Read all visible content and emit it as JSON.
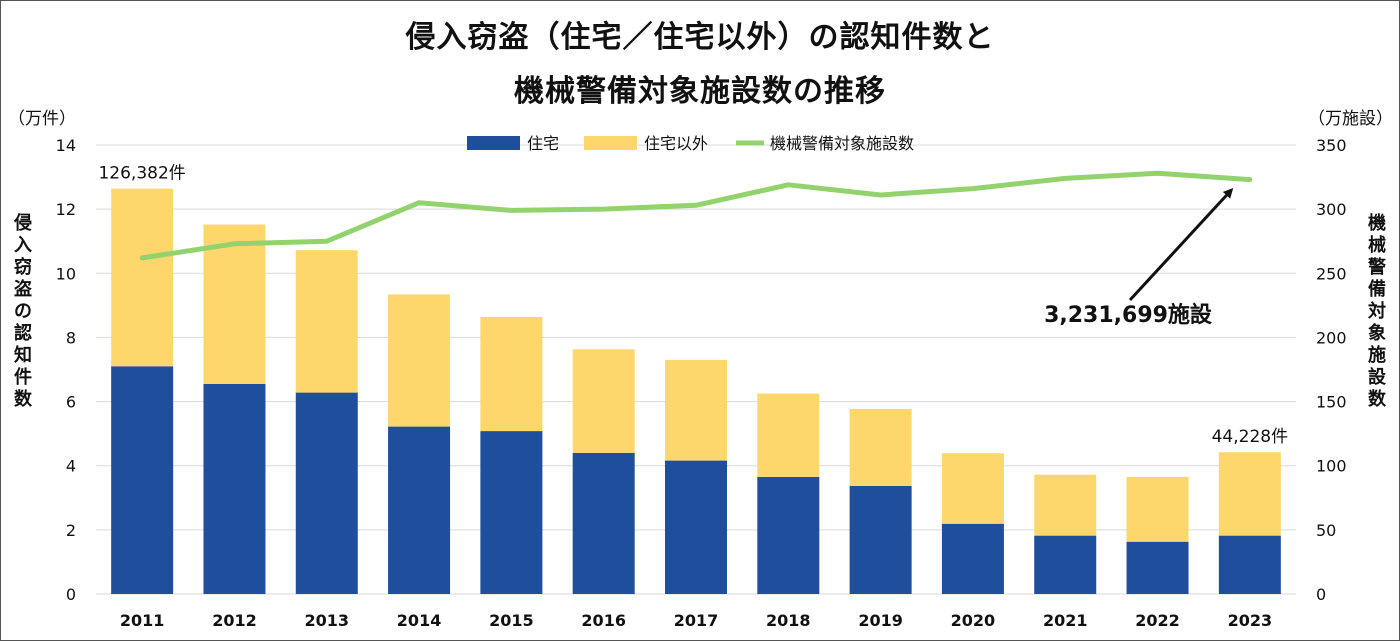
{
  "title_line1": "侵入窃盗（住宅／住宅以外）の認知件数と",
  "title_line2": "機械警備対象施設数の推移",
  "unit_left": "（万件）",
  "unit_right": "（万施設）",
  "ylabel_left": "侵入窃盗の認知件数",
  "ylabel_right": "機械警備対象施設数",
  "colors": {
    "residential": "#1f4e9c",
    "non_residential": "#fdd66c",
    "facilities": "#92d36e",
    "grid": "#d9d9d9"
  },
  "chart_data": {
    "type": "bar",
    "stacked": true,
    "title": "侵入窃盗（住宅／住宅以外）の認知件数と機械警備対象施設数の推移",
    "categories": [
      "2011",
      "2012",
      "2013",
      "2014",
      "2015",
      "2016",
      "2017",
      "2018",
      "2019",
      "2020",
      "2021",
      "2022",
      "2023"
    ],
    "series": [
      {
        "name": "住宅",
        "axis": "left",
        "values": [
          7.1,
          6.55,
          6.28,
          5.22,
          5.08,
          4.4,
          4.16,
          3.65,
          3.37,
          2.19,
          1.82,
          1.63,
          1.82
        ]
      },
      {
        "name": "住宅以外",
        "axis": "left",
        "values": [
          5.54,
          4.97,
          4.44,
          4.12,
          3.56,
          3.23,
          3.14,
          2.6,
          2.4,
          2.2,
          1.9,
          2.02,
          2.6
        ]
      },
      {
        "name": "機械警備対象施設数",
        "axis": "right",
        "type": "line",
        "values": [
          262,
          273,
          275,
          305,
          299,
          300,
          303,
          319,
          311,
          316,
          324,
          328,
          323
        ]
      }
    ],
    "ylim_left": [
      0,
      14
    ],
    "yticks_left": [
      0,
      2,
      4,
      6,
      8,
      10,
      12,
      14
    ],
    "ylim_right": [
      0,
      350
    ],
    "yticks_right": [
      0,
      50,
      100,
      150,
      200,
      250,
      300,
      350
    ],
    "ylabel_left": "侵入窃盗の認知件数",
    "ylabel_right": "機械警備対象施設数",
    "data_labels": [
      {
        "category": "2011",
        "text": "126,382件"
      },
      {
        "category": "2023",
        "text": "44,228件"
      }
    ],
    "annotation": {
      "category": "2023",
      "text": "3,231,699施設"
    },
    "legend_position": "top-center"
  }
}
